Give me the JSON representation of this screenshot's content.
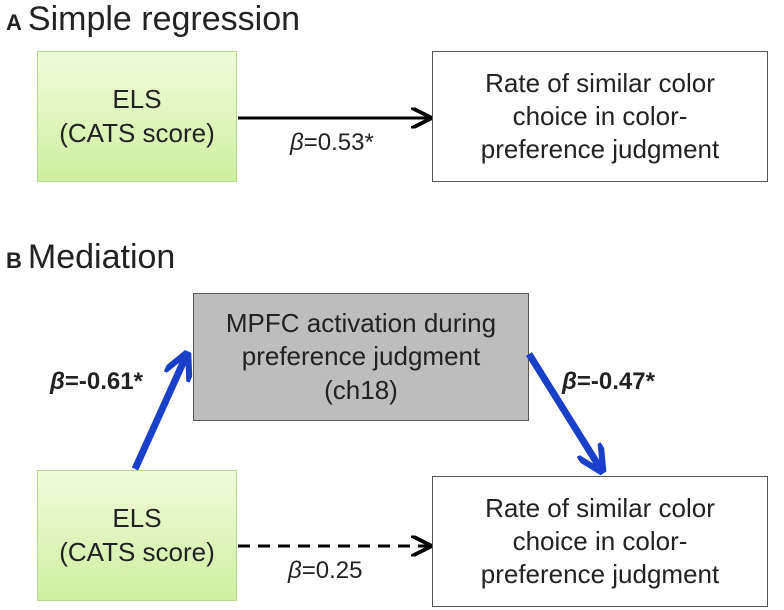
{
  "panel_a": {
    "letter": "A",
    "title": "Simple regression",
    "predictor": {
      "line1": "ELS",
      "line2": "(CATS score)"
    },
    "outcome": {
      "line1": "Rate of similar color",
      "line2": "choice in color-",
      "line3": "preference judgment"
    },
    "path": {
      "symbol": "β",
      "value": "=0.53*"
    }
  },
  "panel_b": {
    "letter": "B",
    "title": "Mediation",
    "mediator": {
      "line1": "MPFC activation during",
      "line2": "preference judgment",
      "line3": "(ch18)"
    },
    "predictor": {
      "line1": "ELS",
      "line2": "(CATS score)"
    },
    "outcome": {
      "line1": "Rate of similar color",
      "line2": "choice in color-",
      "line3": "preference judgment"
    },
    "path_a": {
      "symbol": "β",
      "value": "=-0.61*"
    },
    "path_b": {
      "symbol": "β",
      "value": "=-0.47*"
    },
    "path_c": {
      "symbol": "β",
      "value": "=0.25"
    }
  },
  "colors": {
    "arrow_blue": "#1a3fc9",
    "arrow_black": "#000000"
  }
}
